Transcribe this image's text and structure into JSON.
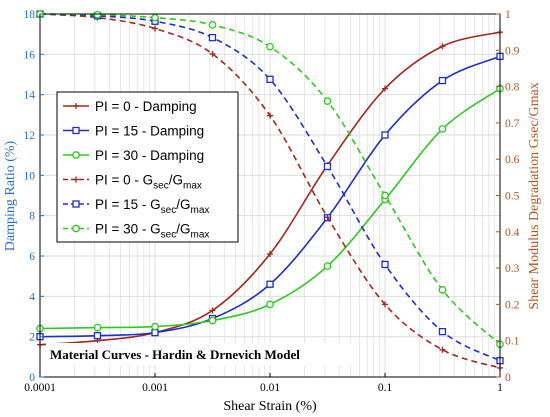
{
  "chart_data": {
    "type": "line",
    "title": "Material Curves - Hardin & Drnevich Model",
    "xlabel": "Shear Strain (%)",
    "ylabel_left": "Damping Ratio (%)",
    "ylabel_right": "Shear Modulus Degradation Gsec/Gmax",
    "x_scale": "log",
    "xlim": [
      0.0001,
      1
    ],
    "ylim_left": [
      0,
      18
    ],
    "ylim_right": [
      0,
      1
    ],
    "grid": true,
    "legend_position": "center-left",
    "x_ticks": [
      "0.0001",
      "0.001",
      "0.01",
      "0.1",
      "1"
    ],
    "y_ticks_left": [
      "0",
      "2",
      "4",
      "6",
      "8",
      "10",
      "12",
      "14",
      "16",
      "18"
    ],
    "y_ticks_right": [
      "0",
      "0.1",
      "0.2",
      "0.3",
      "0.4",
      "0.5",
      "0.6",
      "0.7",
      "0.8",
      "0.9",
      "1"
    ],
    "x": [
      0.0001,
      0.000316,
      0.001,
      0.00316,
      0.01,
      0.0316,
      0.1,
      0.316,
      1
    ],
    "series": [
      {
        "name": "PI = 0 - Damping",
        "axis": "left",
        "color": "#a0281e",
        "dash": false,
        "marker": "plus",
        "values": [
          1.6,
          1.8,
          2.2,
          3.3,
          6.1,
          10.5,
          14.3,
          16.4,
          17.1
        ]
      },
      {
        "name": "PI = 15 - Damping",
        "axis": "left",
        "color": "#1f2ec8",
        "dash": false,
        "marker": "square",
        "values": [
          2.0,
          2.05,
          2.2,
          2.9,
          4.6,
          7.9,
          12.0,
          14.7,
          15.9
        ]
      },
      {
        "name": "PI = 30 - Damping",
        "axis": "left",
        "color": "#2ec81f",
        "dash": false,
        "marker": "circle",
        "values": [
          2.4,
          2.45,
          2.5,
          2.8,
          3.6,
          5.5,
          8.8,
          12.3,
          14.3
        ]
      },
      {
        "name": "PI = 0 - Gsec/Gmax",
        "axis": "right",
        "color": "#a0281e",
        "dash": true,
        "marker": "plus",
        "values": [
          1.0,
          0.99,
          0.96,
          0.89,
          0.72,
          0.44,
          0.2,
          0.075,
          0.025
        ]
      },
      {
        "name": "PI = 15 - Gsec/Gmax",
        "axis": "right",
        "color": "#1f2ec8",
        "dash": true,
        "marker": "square",
        "values": [
          1.0,
          0.995,
          0.98,
          0.935,
          0.82,
          0.58,
          0.31,
          0.125,
          0.045
        ]
      },
      {
        "name": "PI = 30 - Gsec/Gmax",
        "axis": "right",
        "color": "#2ec81f",
        "dash": true,
        "marker": "circle",
        "values": [
          1.0,
          0.998,
          0.99,
          0.97,
          0.91,
          0.76,
          0.5,
          0.24,
          0.09
        ]
      }
    ],
    "legend_labels": [
      {
        "prefix": "PI = 0 - Damping",
        "sub1": "",
        "mid": "",
        "sub2": ""
      },
      {
        "prefix": "PI = 15 - Damping",
        "sub1": "",
        "mid": "",
        "sub2": ""
      },
      {
        "prefix": "PI = 30 - Damping",
        "sub1": "",
        "mid": "",
        "sub2": ""
      },
      {
        "prefix": "PI = 0 - G",
        "sub1": "sec",
        "mid": "/G",
        "sub2": "max"
      },
      {
        "prefix": "PI = 15 - G",
        "sub1": "sec",
        "mid": "/G",
        "sub2": "max"
      },
      {
        "prefix": "PI = 30 - G",
        "sub1": "sec",
        "mid": "/G",
        "sub2": "max"
      }
    ],
    "colors": {
      "left_axis": "#1f6fd0",
      "right_axis": "#b8541e",
      "grid": "#d9d9d9"
    }
  }
}
